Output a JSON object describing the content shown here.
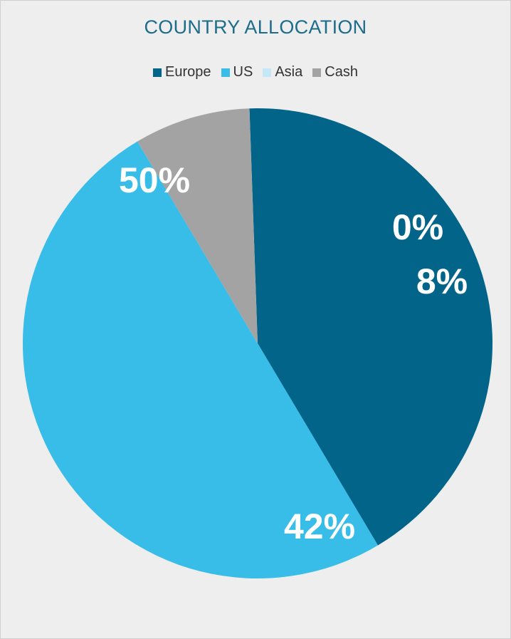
{
  "chart_data": {
    "type": "pie",
    "title": "COUNTRY ALLOCATION",
    "legend_position": "top",
    "slices": [
      {
        "name": "Europe",
        "value": 42,
        "label": "42%",
        "color": "#03648a"
      },
      {
        "name": "US",
        "value": 50,
        "label": "50%",
        "color": "#38bde8"
      },
      {
        "name": "Asia",
        "value": 0,
        "label": "0%",
        "color": "#c5e8f6"
      },
      {
        "name": "Cash",
        "value": 8,
        "label": "8%",
        "color": "#a3a3a3"
      }
    ]
  }
}
